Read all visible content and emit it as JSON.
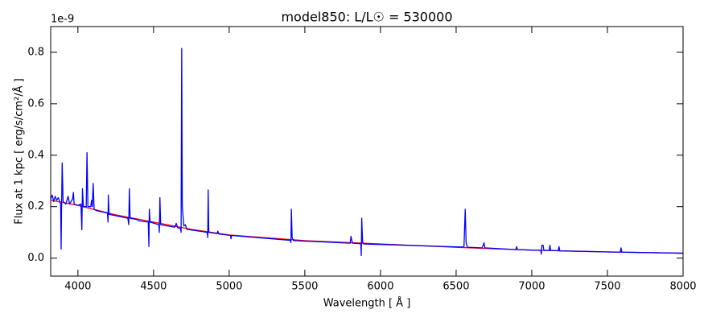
{
  "chart_data": {
    "type": "line",
    "title": "model850: L/L☉ = 530000",
    "x_label": "Wavelength [ Å ]",
    "y_label": "Flux at 1 kpc [ erg/s/cm²/Å ]",
    "y_offset_label": "1e-9",
    "xlim": [
      3820,
      8000
    ],
    "ylim": [
      -0.07,
      0.9
    ],
    "xticks": [
      4000,
      4500,
      5000,
      5500,
      6000,
      6500,
      7000,
      7500,
      8000
    ],
    "yticks": [
      {
        "value": 0,
        "label": "0.0"
      },
      0.2,
      0.4,
      0.6,
      0.8
    ],
    "series": [
      {
        "color": "#ff0000",
        "x": [
          3820,
          4000,
          4250,
          4500,
          4750,
          5000,
          5500,
          6000,
          6500,
          7000,
          7500,
          8000
        ],
        "values": [
          0.225,
          0.205,
          0.168,
          0.14,
          0.112,
          0.09,
          0.068,
          0.055,
          0.042,
          0.031,
          0.024,
          0.019
        ]
      },
      {
        "color": "#0000ff",
        "x": [
          3820,
          3830,
          3840,
          3850,
          3860,
          3870,
          3880,
          3886,
          3889,
          3892,
          3896,
          3902,
          3920,
          3935,
          3945,
          3965,
          3970,
          3975,
          4000,
          4020,
          4026,
          4030,
          4036,
          4055,
          4060,
          4066,
          4085,
          4090,
          4095,
          4101,
          4107,
          4120,
          4195,
          4199,
          4201,
          4206,
          4330,
          4336,
          4340,
          4345,
          4390,
          4400,
          4465,
          4469,
          4472,
          4477,
          4535,
          4538,
          4542,
          4547,
          4640,
          4650,
          4660,
          4678,
          4682,
          4686,
          4690,
          4700,
          4710,
          4720,
          4855,
          4858,
          4861,
          4865,
          4920,
          4925,
          4930,
          5009,
          5012,
          5016,
          5405,
          5408,
          5411,
          5416,
          5425,
          5800,
          5805,
          5810,
          5815,
          5870,
          5873,
          5876,
          5882,
          5890,
          6540,
          6552,
          6560,
          6566,
          6575,
          6670,
          6680,
          6684,
          6690,
          6895,
          6900,
          6905,
          7060,
          7063,
          7067,
          7075,
          7080,
          7115,
          7120,
          7125,
          7175,
          7180,
          7185,
          7585,
          7590,
          7595,
          8000
        ],
        "values": [
          0.23,
          0.245,
          0.22,
          0.24,
          0.225,
          0.235,
          0.22,
          0.21,
          0.035,
          0.2,
          0.37,
          0.22,
          0.21,
          0.24,
          0.21,
          0.23,
          0.255,
          0.21,
          0.205,
          0.21,
          0.11,
          0.27,
          0.2,
          0.2,
          0.41,
          0.2,
          0.2,
          0.225,
          0.2,
          0.29,
          0.19,
          0.185,
          0.175,
          0.14,
          0.245,
          0.17,
          0.155,
          0.13,
          0.27,
          0.155,
          0.15,
          0.145,
          0.14,
          0.045,
          0.19,
          0.14,
          0.13,
          0.1,
          0.235,
          0.13,
          0.12,
          0.135,
          0.118,
          0.115,
          0.1,
          0.815,
          0.2,
          0.125,
          0.13,
          0.112,
          0.1,
          0.08,
          0.265,
          0.1,
          0.095,
          0.105,
          0.094,
          0.088,
          0.075,
          0.088,
          0.069,
          0.06,
          0.19,
          0.08,
          0.068,
          0.058,
          0.085,
          0.07,
          0.058,
          0.056,
          0.01,
          0.155,
          0.06,
          0.055,
          0.043,
          0.045,
          0.19,
          0.06,
          0.042,
          0.04,
          0.05,
          0.06,
          0.04,
          0.033,
          0.045,
          0.033,
          0.03,
          0.015,
          0.05,
          0.05,
          0.03,
          0.03,
          0.05,
          0.03,
          0.029,
          0.045,
          0.028,
          0.023,
          0.04,
          0.023,
          0.019
        ]
      }
    ]
  }
}
